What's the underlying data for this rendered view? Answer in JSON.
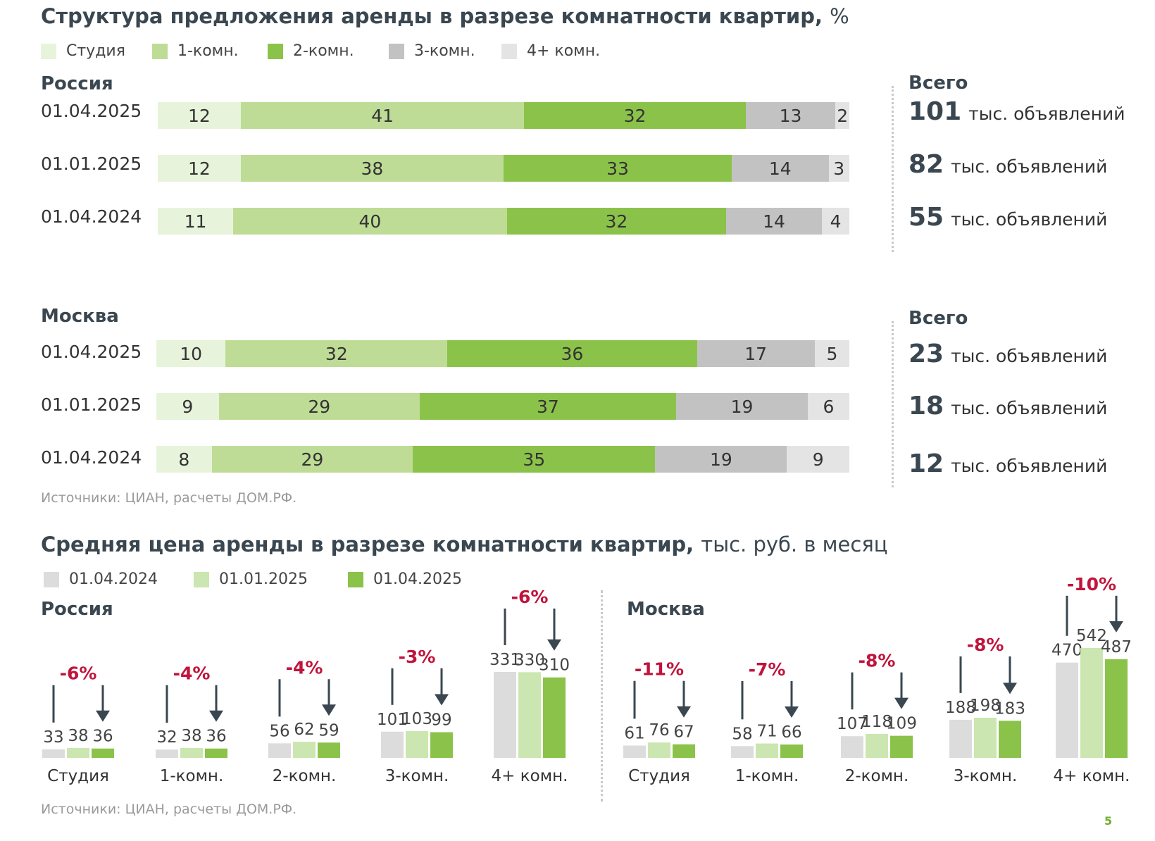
{
  "title_top": "Структура предложения аренды в разрезе комнатности квартир,",
  "title_top_unit": "%",
  "legend_top": [
    {
      "label": "Студия",
      "color": "#e8f3dc"
    },
    {
      "label": "1-комн.",
      "color": "#bedc96"
    },
    {
      "label": "2-комн.",
      "color": "#8bc34a"
    },
    {
      "label": "3-комн.",
      "color": "#c2c2c2"
    },
    {
      "label": "4+ комн.",
      "color": "#e4e4e4"
    }
  ],
  "total_head": "Всего",
  "total_unit": "тыс. объявлений",
  "structure": [
    {
      "region": "Россия",
      "rows": [
        {
          "date": "01.04.2025",
          "values": [
            12,
            41,
            32,
            13,
            2
          ],
          "total": "101"
        },
        {
          "date": "01.01.2025",
          "values": [
            12,
            38,
            33,
            14,
            3
          ],
          "total": "82"
        },
        {
          "date": "01.04.2024",
          "values": [
            11,
            40,
            32,
            14,
            4
          ],
          "total": "55"
        }
      ]
    },
    {
      "region": "Москва",
      "rows": [
        {
          "date": "01.04.2025",
          "values": [
            10,
            32,
            36,
            17,
            5
          ],
          "total": "23"
        },
        {
          "date": "01.01.2025",
          "values": [
            9,
            29,
            37,
            19,
            6
          ],
          "total": "18"
        },
        {
          "date": "01.04.2024",
          "values": [
            8,
            29,
            35,
            19,
            9
          ],
          "total": "12"
        }
      ]
    }
  ],
  "source": "Источники: ЦИАН, расчеты ДОМ.РФ.",
  "title_bottom": "Средняя цена аренды в разрезе комнатности квартир,",
  "title_bottom_unit": "тыс. руб. в месяц",
  "legend_bottom": [
    {
      "label": "01.04.2024",
      "color": "#dcdcdc"
    },
    {
      "label": "01.01.2025",
      "color": "#cbe6b0"
    },
    {
      "label": "01.04.2025",
      "color": "#8bc34a"
    }
  ],
  "chart_data": [
    {
      "type": "bar",
      "title": "Россия",
      "categories": [
        "Студия",
        "1-комн.",
        "2-комн.",
        "3-комн.",
        "4+ комн."
      ],
      "series": [
        {
          "name": "01.04.2024",
          "values": [
            33,
            32,
            56,
            101,
            331
          ]
        },
        {
          "name": "01.01.2025",
          "values": [
            38,
            38,
            62,
            103,
            330
          ]
        },
        {
          "name": "01.04.2025",
          "values": [
            36,
            36,
            59,
            99,
            310
          ]
        }
      ],
      "annotations": [
        "-6%",
        "-4%",
        "-4%",
        "-3%",
        "-6%"
      ]
    },
    {
      "type": "bar",
      "title": "Москва",
      "categories": [
        "Студия",
        "1-комн.",
        "2-комн.",
        "3-комн.",
        "4+ комн."
      ],
      "series": [
        {
          "name": "01.04.2024",
          "values": [
            61,
            58,
            107,
            188,
            470
          ]
        },
        {
          "name": "01.01.2025",
          "values": [
            76,
            71,
            118,
            198,
            542
          ]
        },
        {
          "name": "01.04.2025",
          "values": [
            67,
            66,
            109,
            183,
            487
          ]
        }
      ],
      "annotations": [
        "-11%",
        "-7%",
        "-8%",
        "-8%",
        "-10%"
      ]
    }
  ],
  "page_number": "5"
}
